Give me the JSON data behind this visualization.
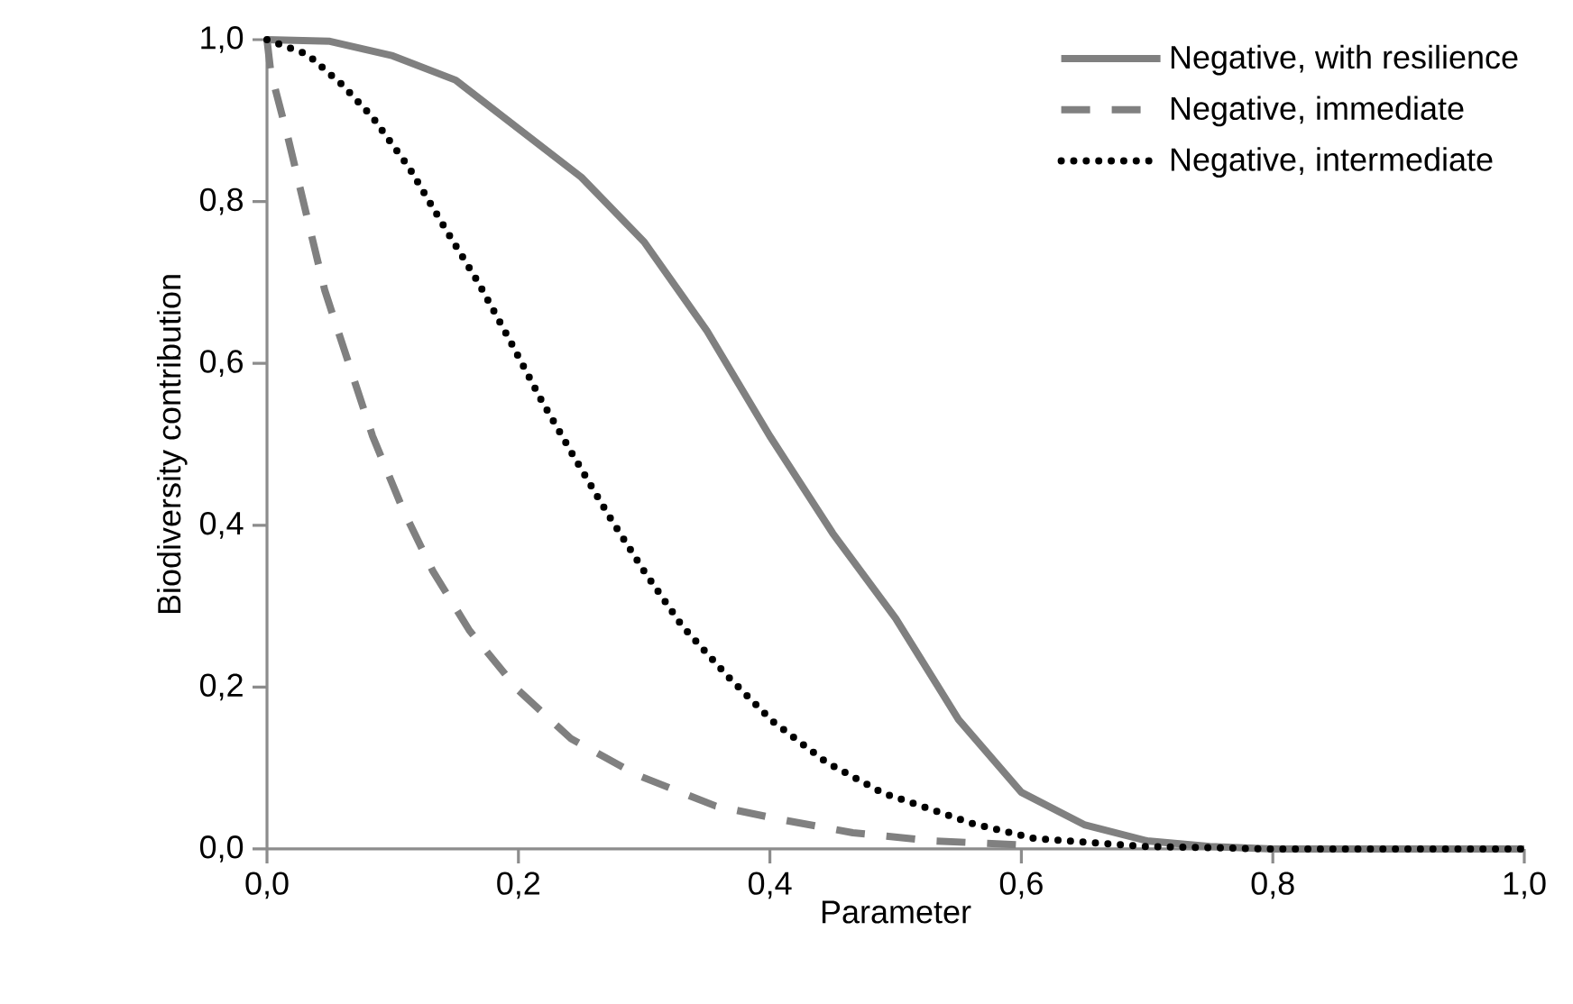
{
  "chart_data": {
    "type": "line",
    "xlabel": "Parameter",
    "ylabel": "Biodiversity contribution",
    "xlim": [
      0,
      1
    ],
    "ylim": [
      0,
      1
    ],
    "xticks": [
      {
        "value": 0,
        "label": "0,0"
      },
      {
        "value": 0.2,
        "label": "0,2"
      },
      {
        "value": 0.4,
        "label": "0,4"
      },
      {
        "value": 0.6,
        "label": "0,6"
      },
      {
        "value": 0.8,
        "label": "0,8"
      },
      {
        "value": 1,
        "label": "1,0"
      }
    ],
    "yticks": [
      {
        "value": 0,
        "label": "0,0"
      },
      {
        "value": 0.2,
        "label": "0,2"
      },
      {
        "value": 0.4,
        "label": "0,4"
      },
      {
        "value": 0.6,
        "label": "0,6"
      },
      {
        "value": 0.8,
        "label": "0,8"
      },
      {
        "value": 1,
        "label": "1,0"
      }
    ],
    "grid": false,
    "legend": "top right",
    "marker": "none",
    "series": [
      {
        "name": "Negative, with resilience",
        "color": "#808080",
        "line_style": "solid",
        "x": [
          0,
          0.05,
          0.1,
          0.15,
          0.2,
          0.25,
          0.3,
          0.35,
          0.4,
          0.45,
          0.5,
          0.55,
          0.6,
          0.65,
          0.7,
          0.75,
          0.8,
          0.9,
          1.0
        ],
        "values": [
          1,
          0.998,
          0.98,
          0.95,
          0.89,
          0.83,
          0.75,
          0.64,
          0.51,
          0.39,
          0.285,
          0.16,
          0.07,
          0.03,
          0.01,
          0.003,
          0,
          0,
          0
        ]
      },
      {
        "name": "Negative, immediate",
        "color": "#808080",
        "line_style": "dashed",
        "x": [
          0,
          0.003,
          0.017,
          0.032,
          0.046,
          0.065,
          0.084,
          0.108,
          0.132,
          0.161,
          0.2,
          0.242,
          0.295,
          0.357,
          0.41,
          0.466,
          0.53,
          0.6
        ],
        "values": [
          1,
          0.96,
          0.877,
          0.78,
          0.69,
          0.6,
          0.51,
          0.42,
          0.343,
          0.27,
          0.196,
          0.136,
          0.091,
          0.053,
          0.036,
          0.02,
          0.01,
          0.005
        ]
      },
      {
        "name": "Negative, intermediate",
        "color": "#000000",
        "line_style": "dotted",
        "x": [
          0,
          0.032,
          0.06,
          0.084,
          0.113,
          0.142,
          0.168,
          0.194,
          0.218,
          0.244,
          0.271,
          0.3,
          0.33,
          0.366,
          0.402,
          0.445,
          0.49,
          0.562,
          0.61,
          0.7,
          0.8,
          0.9,
          1.0
        ],
        "values": [
          1,
          0.982,
          0.944,
          0.904,
          0.842,
          0.766,
          0.7,
          0.626,
          0.555,
          0.485,
          0.414,
          0.343,
          0.276,
          0.214,
          0.158,
          0.107,
          0.069,
          0.031,
          0.013,
          0.003,
          0,
          0,
          0
        ]
      }
    ]
  }
}
